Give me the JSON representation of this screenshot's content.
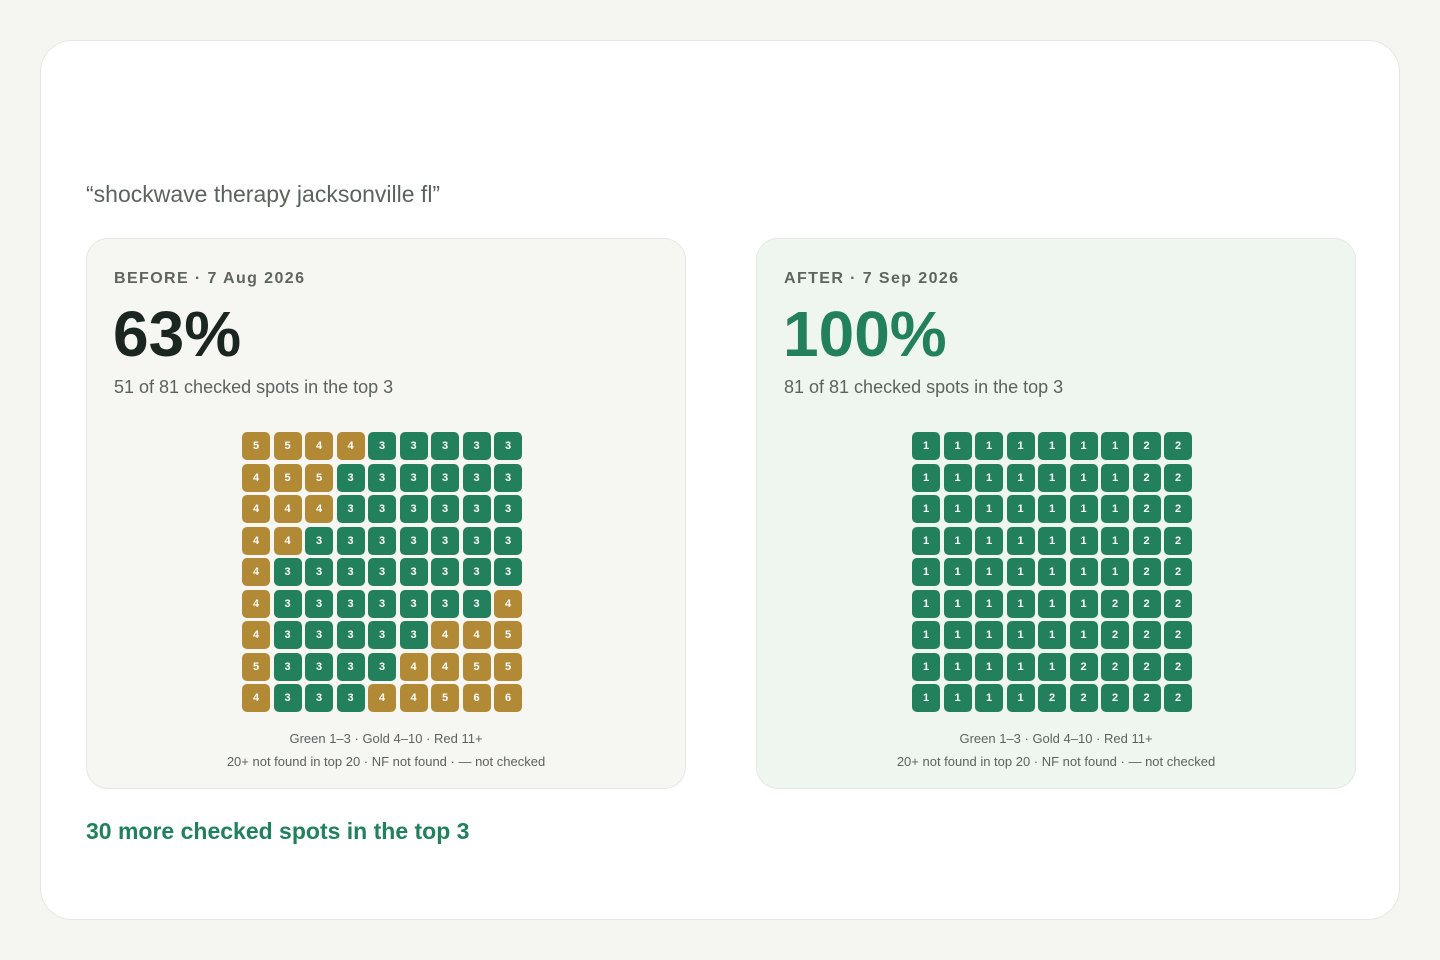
{
  "query": "“shockwave therapy jacksonville fl”",
  "colors": {
    "green": "#22805c",
    "gold": "#b28a36",
    "red": "#c0473f"
  },
  "before": {
    "label": "BEFORE · 7 Aug 2026",
    "percent": "63%",
    "summary": "51 of 81 checked spots in the top 3",
    "grid": [
      [
        5,
        5,
        4,
        4,
        3,
        3,
        3,
        3,
        3
      ],
      [
        4,
        5,
        5,
        3,
        3,
        3,
        3,
        3,
        3
      ],
      [
        4,
        4,
        4,
        3,
        3,
        3,
        3,
        3,
        3
      ],
      [
        4,
        4,
        3,
        3,
        3,
        3,
        3,
        3,
        3
      ],
      [
        4,
        3,
        3,
        3,
        3,
        3,
        3,
        3,
        3
      ],
      [
        4,
        3,
        3,
        3,
        3,
        3,
        3,
        3,
        4
      ],
      [
        4,
        3,
        3,
        3,
        3,
        3,
        4,
        4,
        5
      ],
      [
        5,
        3,
        3,
        3,
        3,
        4,
        4,
        5,
        5
      ],
      [
        4,
        3,
        3,
        3,
        4,
        4,
        5,
        6,
        6
      ]
    ],
    "legend_line1": "Green 1–3 · Gold 4–10 · Red 11+",
    "legend_line2": "20+ not found in top 20 · NF not found · — not checked"
  },
  "after": {
    "label": "AFTER · 7 Sep 2026",
    "percent": "100%",
    "summary": "81 of 81 checked spots in the top 3",
    "grid": [
      [
        1,
        1,
        1,
        1,
        1,
        1,
        1,
        2,
        2
      ],
      [
        1,
        1,
        1,
        1,
        1,
        1,
        1,
        2,
        2
      ],
      [
        1,
        1,
        1,
        1,
        1,
        1,
        1,
        2,
        2
      ],
      [
        1,
        1,
        1,
        1,
        1,
        1,
        1,
        2,
        2
      ],
      [
        1,
        1,
        1,
        1,
        1,
        1,
        1,
        2,
        2
      ],
      [
        1,
        1,
        1,
        1,
        1,
        1,
        2,
        2,
        2
      ],
      [
        1,
        1,
        1,
        1,
        1,
        1,
        2,
        2,
        2
      ],
      [
        1,
        1,
        1,
        1,
        1,
        2,
        2,
        2,
        2
      ],
      [
        1,
        1,
        1,
        1,
        2,
        2,
        2,
        2,
        2
      ]
    ],
    "legend_line1": "Green 1–3 · Gold 4–10 · Red 11+",
    "legend_line2": "20+ not found in top 20 · NF not found · — not checked"
  },
  "delta": "30 more checked spots in the top 3"
}
